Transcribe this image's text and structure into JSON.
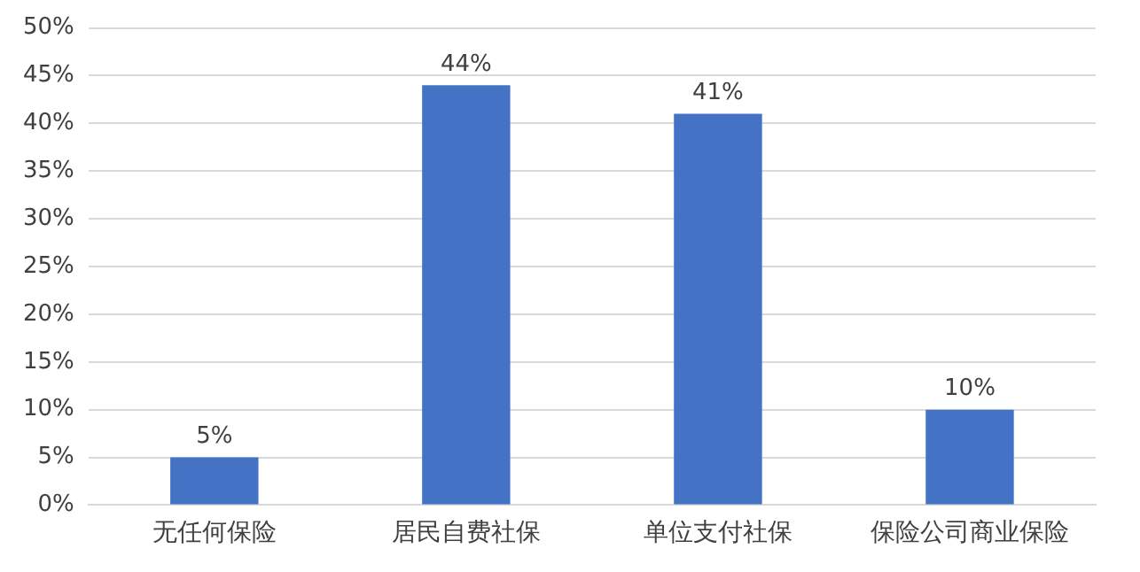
{
  "chart_data": {
    "type": "bar",
    "categories": [
      "无任何保险",
      "居民自费社保",
      "单位支付社保",
      "保险公司商业保险"
    ],
    "values": [
      5,
      44,
      41,
      10
    ],
    "value_labels": [
      "5%",
      "44%",
      "41%",
      "10%"
    ],
    "color": "#4472c4",
    "ylim": [
      0,
      50
    ],
    "yticks": [
      {
        "value": 0,
        "label": "0%"
      },
      {
        "value": 5,
        "label": "5%"
      },
      {
        "value": 10,
        "label": "10%"
      },
      {
        "value": 15,
        "label": "15%"
      },
      {
        "value": 20,
        "label": "20%"
      },
      {
        "value": 25,
        "label": "25%"
      },
      {
        "value": 30,
        "label": "30%"
      },
      {
        "value": 35,
        "label": "35%"
      },
      {
        "value": 40,
        "label": "40%"
      },
      {
        "value": 45,
        "label": "45%"
      },
      {
        "value": 50,
        "label": "50%"
      }
    ],
    "grid": "y"
  }
}
